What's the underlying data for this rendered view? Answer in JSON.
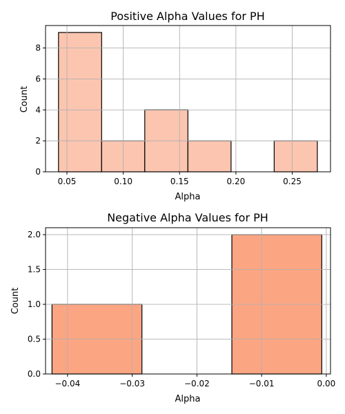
{
  "chart_data": [
    {
      "type": "bar",
      "title": "Positive Alpha Values for PH",
      "xlabel": "Alpha",
      "ylabel": "Count",
      "xlim": [
        0.031,
        0.284
      ],
      "ylim": [
        0,
        9.45
      ],
      "xticks": [
        0.05,
        0.1,
        0.15,
        0.2,
        0.25
      ],
      "xtick_labels": [
        "0.05",
        "0.10",
        "0.15",
        "0.20",
        "0.25"
      ],
      "yticks": [
        0,
        2,
        4,
        6,
        8
      ],
      "ytick_labels": [
        "0",
        "2",
        "4",
        "6",
        "8"
      ],
      "bin_edges": [
        0.0425,
        0.0808,
        0.1191,
        0.1574,
        0.1957,
        0.234,
        0.2723
      ],
      "values": [
        9,
        2,
        4,
        2,
        0,
        2
      ],
      "bar_color": "#fcc5b0",
      "edge_color": "#000000",
      "grid": true
    },
    {
      "type": "bar",
      "title": "Negative Alpha Values for PH",
      "xlabel": "Alpha",
      "ylabel": "Count",
      "xlim": [
        -0.0434,
        0.00065
      ],
      "ylim": [
        0,
        2.1
      ],
      "xticks": [
        -0.04,
        -0.03,
        -0.02,
        -0.01,
        0.0
      ],
      "xtick_labels": [
        "−0.04",
        "−0.03",
        "−0.02",
        "−0.01",
        "0.00"
      ],
      "yticks": [
        0,
        0.5,
        1.0,
        1.5,
        2.0
      ],
      "ytick_labels": [
        "0.0",
        "0.5",
        "1.0",
        "1.5",
        "2.0"
      ],
      "bin_edges": [
        -0.0424,
        -0.0285,
        -0.0146,
        -0.0007
      ],
      "values": [
        1,
        0,
        2
      ],
      "bar_color": "#fca582",
      "edge_color": "#000000",
      "grid": true
    }
  ]
}
